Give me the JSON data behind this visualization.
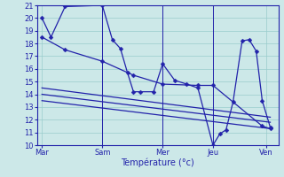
{
  "xlabel": "Température (°c)",
  "bg_color": "#cce8e8",
  "line_color": "#2222aa",
  "grid_color": "#99cccc",
  "ylim": [
    10,
    21
  ],
  "yticks": [
    10,
    11,
    12,
    13,
    14,
    15,
    16,
    17,
    18,
    19,
    20,
    21
  ],
  "xlim": [
    0,
    240
  ],
  "day_ticks": [
    5,
    65,
    125,
    175,
    228
  ],
  "day_labels": [
    "Mar",
    "Sam",
    "Mer",
    "Jeu",
    "Ven"
  ],
  "series_main": {
    "x": [
      5,
      14,
      28,
      65,
      75,
      83,
      90,
      96,
      103,
      116,
      125,
      137,
      149,
      160,
      175,
      182,
      188,
      195,
      204,
      211,
      218,
      224,
      232
    ],
    "y": [
      20,
      18.5,
      20.9,
      21.0,
      18.3,
      17.6,
      15.7,
      14.2,
      14.2,
      14.2,
      16.4,
      15.1,
      14.8,
      14.5,
      10.0,
      10.9,
      11.2,
      13.4,
      18.2,
      18.3,
      17.4,
      13.5,
      11.4
    ]
  },
  "series_long1": {
    "x": [
      5,
      28,
      65,
      96,
      125,
      160,
      175,
      224,
      232
    ],
    "y": [
      18.5,
      17.5,
      16.6,
      15.5,
      14.8,
      14.7,
      14.7,
      11.5,
      11.3
    ]
  },
  "series_long2": {
    "x": [
      5,
      232
    ],
    "y": [
      14.5,
      12.2
    ]
  },
  "series_long3": {
    "x": [
      5,
      232
    ],
    "y": [
      14.0,
      11.8
    ]
  },
  "series_long4": {
    "x": [
      5,
      232
    ],
    "y": [
      13.5,
      11.3
    ]
  },
  "lw": 0.9,
  "ms": 2.5
}
